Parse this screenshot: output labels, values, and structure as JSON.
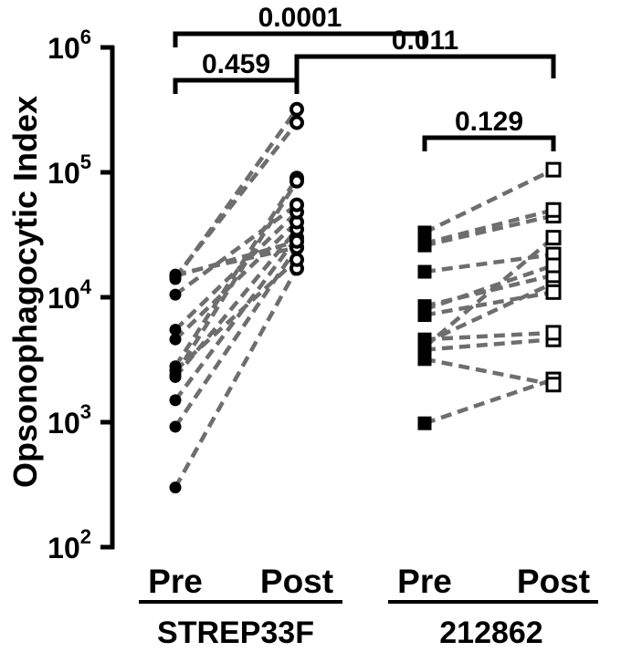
{
  "chart_data": {
    "type": "scatter",
    "ylabel": "Opsonophagocytic Index",
    "y_scale": "log",
    "ylim": [
      100,
      1000000
    ],
    "y_ticks": [
      {
        "base": "10",
        "exp": "2"
      },
      {
        "base": "10",
        "exp": "3"
      },
      {
        "base": "10",
        "exp": "4"
      },
      {
        "base": "10",
        "exp": "5"
      },
      {
        "base": "10",
        "exp": "6"
      }
    ],
    "x_tick_labels": [
      "Pre",
      "Post",
      "Pre",
      "Post"
    ],
    "groups": [
      "STREP33F",
      "212862"
    ],
    "series": [
      {
        "group": "STREP33F",
        "marker": "filled-circle",
        "pairs": [
          {
            "pre": 300,
            "post": 17000
          },
          {
            "pre": 920,
            "post": 25000
          },
          {
            "pre": 1500,
            "post": 30000
          },
          {
            "pre": 2300,
            "post": 35000
          },
          {
            "pre": 2600,
            "post": 20000
          },
          {
            "pre": 2800,
            "post": 90000
          },
          {
            "pre": 4600,
            "post": 40000
          },
          {
            "pre": 5500,
            "post": 48000
          },
          {
            "pre": 10500,
            "post": 55000
          },
          {
            "pre": 14000,
            "post": 320000
          },
          {
            "pre": 14500,
            "post": 250000
          },
          {
            "pre": 15200,
            "post": 25000
          },
          {
            "pre": 14800,
            "post": 28000
          },
          {
            "pre": 2400,
            "post": 85000
          }
        ]
      },
      {
        "group": "212862",
        "marker": "filled-square / open-square",
        "pairs": [
          {
            "pre": 980,
            "post": 2200
          },
          {
            "pre": 3200,
            "post": 2000
          },
          {
            "pre": 3800,
            "post": 4600
          },
          {
            "pre": 4300,
            "post": 13000
          },
          {
            "pre": 4600,
            "post": 5200
          },
          {
            "pre": 7200,
            "post": 11000
          },
          {
            "pre": 8500,
            "post": 15000
          },
          {
            "pre": 16000,
            "post": 22000
          },
          {
            "pre": 26000,
            "post": 45000
          },
          {
            "pre": 33000,
            "post": 105000
          },
          {
            "pre": 8000,
            "post": 18000
          },
          {
            "pre": 4000,
            "post": 30000
          },
          {
            "pre": 27000,
            "post": 50000
          }
        ]
      }
    ],
    "comparisons": [
      {
        "label": "0.0001",
        "from": "STREP33F Pre",
        "to": "STREP33F Post"
      },
      {
        "label": "0.459",
        "from": "STREP33F Pre",
        "to": "212862 Pre"
      },
      {
        "label": "0.011",
        "from": "STREP33F Post",
        "to": "212862 Post"
      },
      {
        "label": "0.129",
        "from": "212862 Pre",
        "to": "212862 Post"
      }
    ],
    "colors": {
      "points": "#000000",
      "lines": "#6e6e6e",
      "axis": "#000000"
    }
  }
}
